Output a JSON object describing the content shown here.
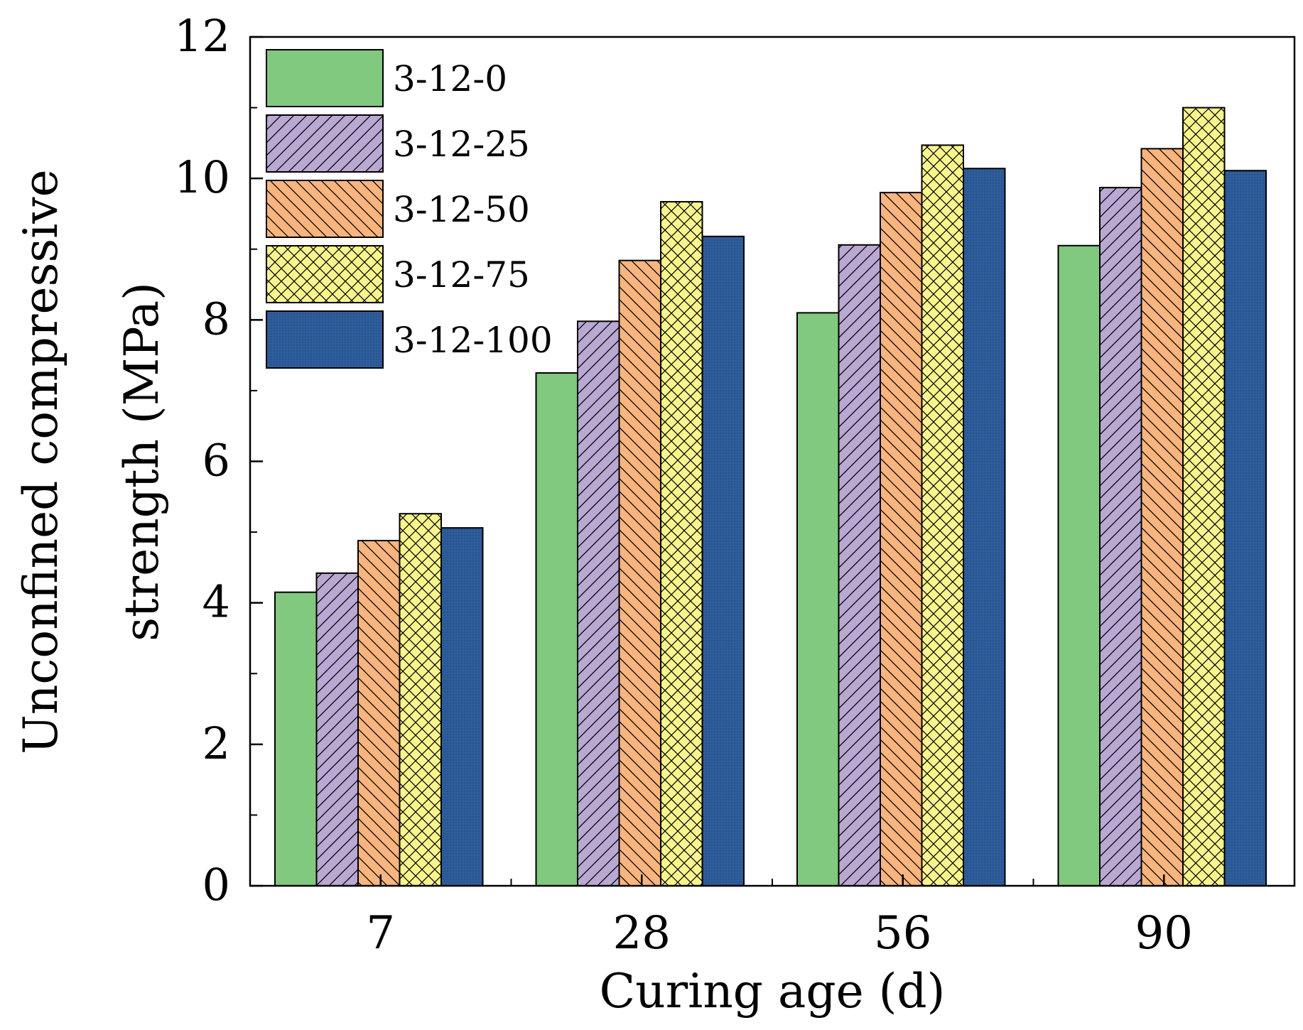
{
  "chart_data": {
    "type": "bar",
    "title": "",
    "xlabel": "Curing age (d)",
    "ylabel": [
      "Unconfined compressive",
      "strength (MPa)"
    ],
    "categories": [
      "7",
      "28",
      "56",
      "90"
    ],
    "ylim": [
      0,
      12
    ],
    "yticks": [
      "0",
      "2",
      "4",
      "6",
      "8",
      "10",
      "12"
    ],
    "legend_position": "top-left",
    "series": [
      {
        "name": "3-12-0",
        "values": [
          4.15,
          7.25,
          8.1,
          9.05
        ],
        "color": "#80c97e",
        "pattern": "solid"
      },
      {
        "name": "3-12-25",
        "values": [
          4.42,
          7.98,
          9.06,
          9.87
        ],
        "color": "#b9a8d2",
        "pattern": "diag-up"
      },
      {
        "name": "3-12-50",
        "values": [
          4.88,
          8.84,
          9.8,
          10.42
        ],
        "color": "#f9b57d",
        "pattern": "diag-down"
      },
      {
        "name": "3-12-75",
        "values": [
          5.26,
          9.67,
          10.47,
          11.0
        ],
        "color": "#f8f58e",
        "pattern": "cross"
      },
      {
        "name": "3-12-100",
        "values": [
          5.06,
          9.18,
          10.14,
          10.11
        ],
        "color": "#2e5d9b",
        "pattern": "dots"
      }
    ]
  }
}
